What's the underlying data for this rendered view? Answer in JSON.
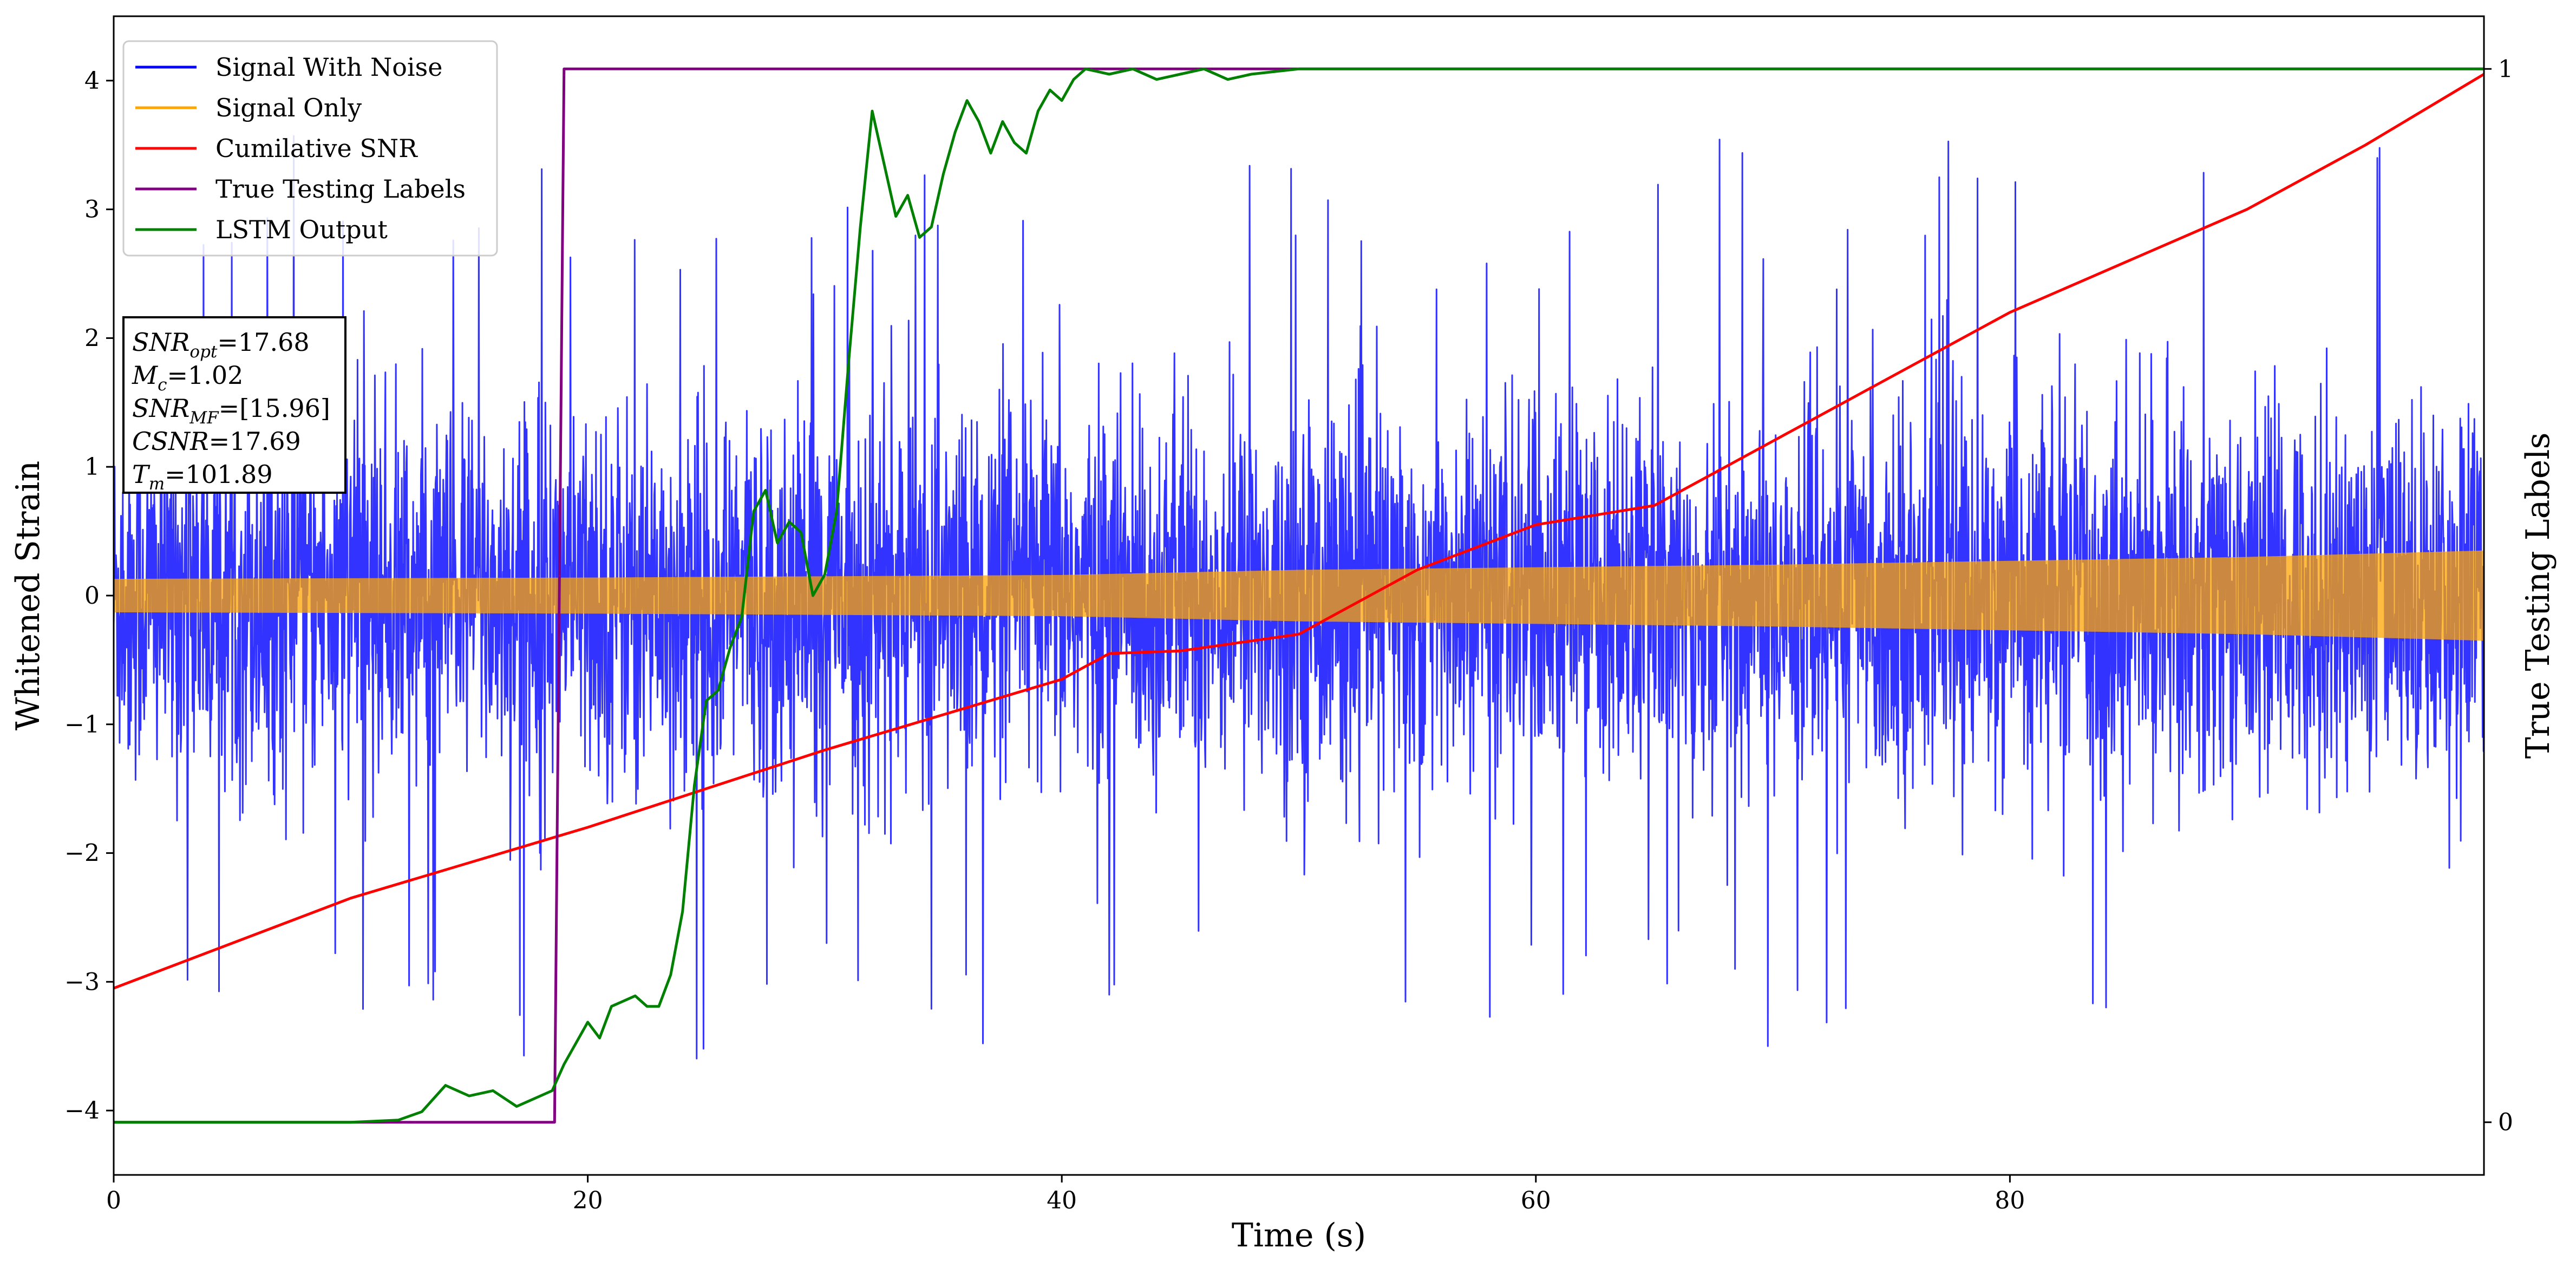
{
  "chart_data": {
    "type": "line",
    "xlabel": "Time (s)",
    "ylabel": "Whitened Strain",
    "y2label": "True Testing Labels",
    "xlim": [
      0,
      100
    ],
    "ylim": [
      -4.5,
      4.5
    ],
    "y2lim": [
      -0.05,
      1.05
    ],
    "x_ticks": [
      "0",
      "20",
      "40",
      "60",
      "80"
    ],
    "y_ticks": [
      "−4",
      "−3",
      "−2",
      "−1",
      "0",
      "1",
      "2",
      "3",
      "4"
    ],
    "y2_ticks": [
      "0",
      "1"
    ],
    "legend_position": "upper-left",
    "legend": [
      "Signal With Noise",
      "Signal Only",
      "Cumilative SNR",
      "True Testing Labels",
      "LSTM Output"
    ],
    "series": [
      {
        "name": "Signal With Noise",
        "color": "#0000ff",
        "description_type": "dense noise",
        "band": {
          "typical_max": 2.2,
          "typical_min": -2.2,
          "extreme_max": 4.1,
          "extreme_min": -3.8
        }
      },
      {
        "name": "Signal Only",
        "color": "#ffa500",
        "description_type": "chirp envelope",
        "envelope": {
          "x": [
            0,
            20,
            30,
            40,
            50,
            60,
            70,
            80,
            90,
            100
          ],
          "amplitude": [
            0.13,
            0.14,
            0.15,
            0.16,
            0.2,
            0.22,
            0.24,
            0.27,
            0.3,
            0.35
          ]
        }
      },
      {
        "name": "Cumilative SNR",
        "color": "#ff0000",
        "x": [
          0,
          10,
          20,
          30,
          40,
          42,
          45,
          50,
          55,
          60,
          65,
          70,
          80,
          90,
          95,
          100
        ],
        "y": [
          -3.05,
          -2.35,
          -1.8,
          -1.2,
          -0.65,
          -0.45,
          -0.43,
          -0.3,
          0.2,
          0.55,
          0.7,
          1.2,
          2.2,
          3.0,
          3.5,
          4.05
        ]
      },
      {
        "name": "True Testing Labels",
        "color": "#800080",
        "axis": "right",
        "x": [
          0,
          18.6,
          19.0,
          100
        ],
        "y": [
          0,
          0,
          1,
          1
        ]
      },
      {
        "name": "LSTM Output",
        "color": "#008000",
        "axis": "right",
        "x": [
          0,
          10,
          12,
          13,
          14,
          15,
          16,
          17,
          18,
          18.5,
          19,
          20,
          20.5,
          21,
          22,
          22.5,
          23,
          23.5,
          24,
          24.5,
          25,
          25.5,
          26,
          26.5,
          27,
          27.5,
          28,
          28.5,
          29,
          29.5,
          30,
          30.5,
          31,
          31.5,
          32,
          32.5,
          33,
          33.5,
          34,
          34.5,
          35,
          35.5,
          36,
          36.5,
          37,
          37.5,
          38,
          38.5,
          39,
          39.5,
          40,
          40.5,
          41,
          42,
          43,
          44,
          45,
          46,
          47,
          48,
          50,
          52,
          55,
          100
        ],
        "y": [
          0,
          0,
          0.002,
          0.01,
          0.035,
          0.025,
          0.03,
          0.015,
          0.025,
          0.03,
          0.055,
          0.095,
          0.08,
          0.11,
          0.12,
          0.11,
          0.11,
          0.14,
          0.2,
          0.32,
          0.4,
          0.41,
          0.45,
          0.48,
          0.58,
          0.6,
          0.55,
          0.57,
          0.56,
          0.5,
          0.52,
          0.58,
          0.72,
          0.85,
          0.96,
          0.91,
          0.86,
          0.88,
          0.84,
          0.85,
          0.9,
          0.94,
          0.97,
          0.95,
          0.92,
          0.95,
          0.93,
          0.92,
          0.96,
          0.98,
          0.97,
          0.99,
          1.0,
          0.995,
          1.0,
          0.99,
          0.995,
          1.0,
          0.99,
          0.995,
          1.0,
          1.0,
          1.0,
          1.0
        ]
      }
    ],
    "annotation": {
      "lines": [
        {
          "var": "SNR",
          "sub": "opt",
          "value": "=17.68"
        },
        {
          "var": "M",
          "sub": "c",
          "value": "=1.02"
        },
        {
          "var": "SNR",
          "sub": "MF",
          "value": "=[15.96]"
        },
        {
          "var": "CSNR",
          "sub": "",
          "value": "=17.69"
        },
        {
          "var": "T",
          "sub": "m",
          "value": "=101.89"
        }
      ]
    }
  }
}
